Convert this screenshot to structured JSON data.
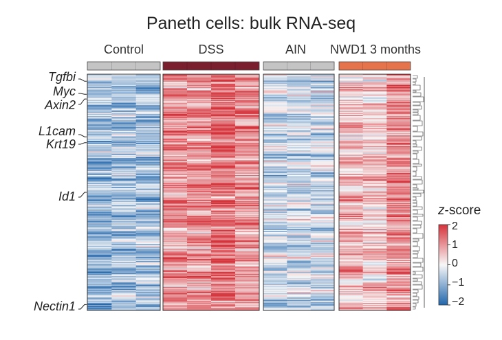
{
  "chart_data": {
    "type": "heatmap",
    "title": "Paneth cells: bulk RNA-seq",
    "groups": [
      {
        "name": "Control",
        "color": "#c4c4c4",
        "samples": 3
      },
      {
        "name": "DSS",
        "color": "#7a1f2e",
        "samples": 4
      },
      {
        "name": "AIN",
        "color": "#c4c4c4",
        "samples": 3
      },
      {
        "name": "NWD1 3 months",
        "color": "#e5734b",
        "samples": 3
      }
    ],
    "row_count": 220,
    "labeled_genes": [
      {
        "gene": "Tgfbi",
        "row_fraction": 0.03
      },
      {
        "gene": "Myc",
        "row_fraction": 0.085
      },
      {
        "gene": "Axin2",
        "row_fraction": 0.105
      },
      {
        "gene": "L1cam",
        "row_fraction": 0.265
      },
      {
        "gene": "Krt19",
        "row_fraction": 0.29
      },
      {
        "gene": "Id1",
        "row_fraction": 0.5
      },
      {
        "gene": "Nectin1",
        "row_fraction": 0.975
      }
    ],
    "group_mean_zscore": {
      "Control": -0.8,
      "DSS": 1.0,
      "AIN": -0.4,
      "NWD1 3 months": 0.5
    },
    "colorbar": {
      "title_italic": "z",
      "title_rest": "-score",
      "range": [
        -2,
        2
      ],
      "ticks": [
        "2",
        "1",
        "0",
        "−1",
        "−2"
      ],
      "colors": {
        "low": "#2166ac",
        "mid": "#f7f7f7",
        "high": "#d6323a"
      }
    },
    "dendrogram": "right"
  }
}
